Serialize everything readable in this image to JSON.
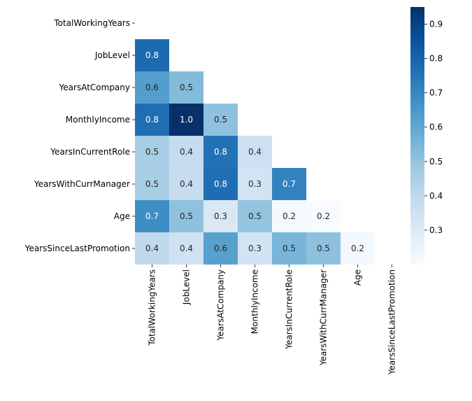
{
  "chart_data": {
    "type": "heatmap",
    "title": "",
    "xlabel": "",
    "ylabel": "",
    "rows": [
      "TotalWorkingYears",
      "JobLevel",
      "YearsAtCompany",
      "MonthlyIncome",
      "YearsInCurrentRole",
      "YearsWithCurrManager",
      "Age",
      "YearsSinceLastPromotion"
    ],
    "columns": [
      "TotalWorkingYears",
      "JobLevel",
      "YearsAtCompany",
      "MonthlyIncome",
      "YearsInCurrentRole",
      "YearsWithCurrManager",
      "Age",
      "YearsSinceLastPromotion"
    ],
    "values": [
      [
        null,
        null,
        null,
        null,
        null,
        null,
        null,
        null
      ],
      [
        0.78,
        null,
        null,
        null,
        null,
        null,
        null,
        null
      ],
      [
        0.63,
        0.53,
        null,
        null,
        null,
        null,
        null,
        null
      ],
      [
        0.77,
        0.95,
        0.51,
        null,
        null,
        null,
        null,
        null
      ],
      [
        0.46,
        0.39,
        0.76,
        0.36,
        null,
        null,
        null,
        null
      ],
      [
        0.46,
        0.38,
        0.77,
        0.34,
        0.71,
        null,
        null,
        null
      ],
      [
        0.68,
        0.51,
        0.31,
        0.5,
        0.21,
        0.2,
        null,
        null
      ],
      [
        0.4,
        0.35,
        0.62,
        0.34,
        0.55,
        0.51,
        0.22,
        null
      ]
    ],
    "annotations": [
      [
        null,
        null,
        null,
        null,
        null,
        null,
        null,
        null
      ],
      [
        "0.8",
        null,
        null,
        null,
        null,
        null,
        null,
        null
      ],
      [
        "0.6",
        "0.5",
        null,
        null,
        null,
        null,
        null,
        null
      ],
      [
        "0.8",
        "1.0",
        "0.5",
        null,
        null,
        null,
        null,
        null
      ],
      [
        "0.5",
        "0.4",
        "0.8",
        "0.4",
        null,
        null,
        null,
        null
      ],
      [
        "0.5",
        "0.4",
        "0.8",
        "0.3",
        "0.7",
        null,
        null,
        null
      ],
      [
        "0.7",
        "0.5",
        "0.3",
        "0.5",
        "0.2",
        "0.2",
        null,
        null
      ],
      [
        "0.4",
        "0.4",
        "0.6",
        "0.3",
        "0.5",
        "0.5",
        "0.2",
        null
      ]
    ],
    "colormap": "Blues",
    "vmin": 0.2,
    "vmax": 0.95,
    "colorbar_ticks": [
      0.3,
      0.4,
      0.5,
      0.6,
      0.7,
      0.8,
      0.9
    ],
    "colorbar_tick_labels": [
      "0.3",
      "0.4",
      "0.5",
      "0.6",
      "0.7",
      "0.8",
      "0.9"
    ]
  }
}
